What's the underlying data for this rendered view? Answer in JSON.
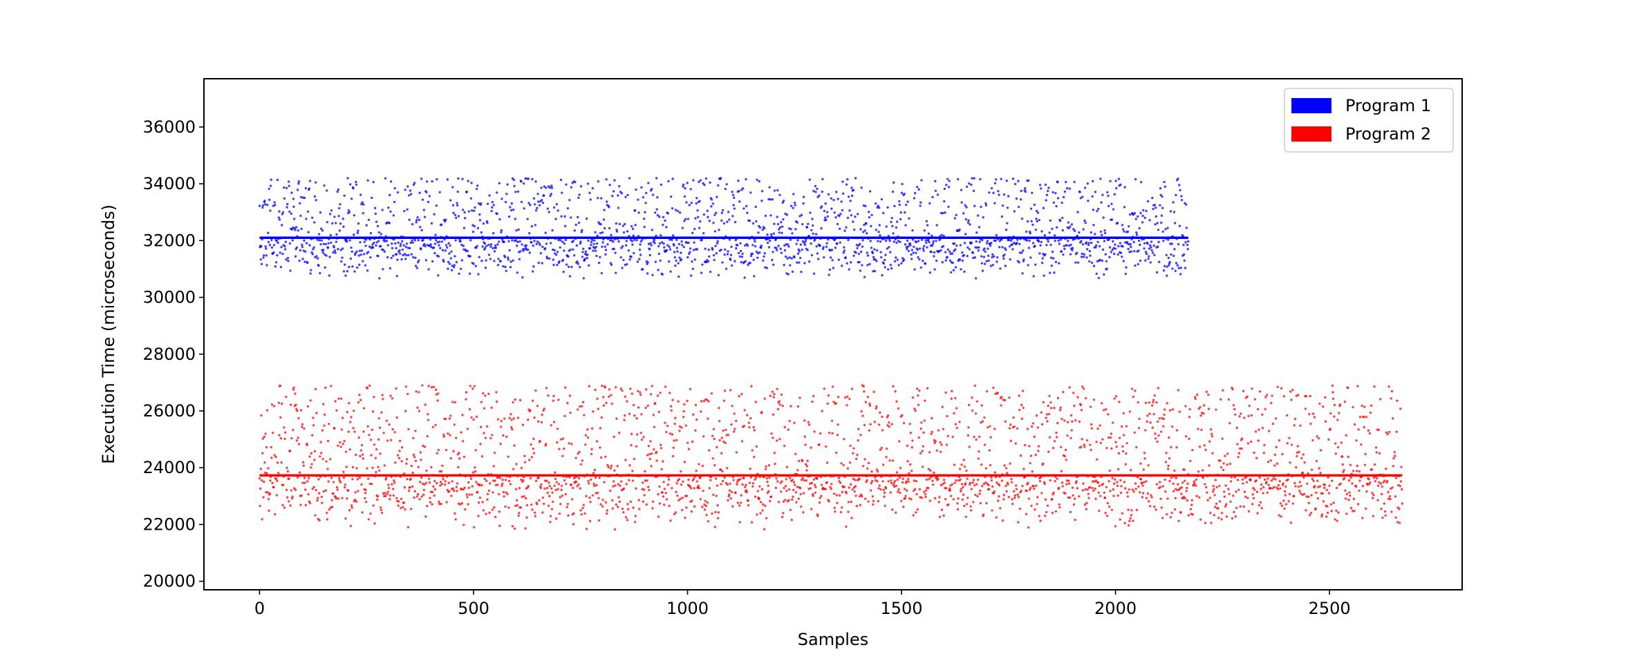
{
  "chart_data": {
    "type": "scatter",
    "title": "",
    "xlabel": "Samples",
    "ylabel": "Execution Time (microseconds)",
    "xlim": [
      -130,
      2810
    ],
    "ylim": [
      19700,
      37700
    ],
    "xticks": [
      0,
      500,
      1000,
      1500,
      2000,
      2500
    ],
    "yticks": [
      20000,
      22000,
      24000,
      26000,
      28000,
      30000,
      32000,
      34000,
      36000
    ],
    "grid": false,
    "legend": {
      "position": "top-right",
      "style": "color patch"
    },
    "series": [
      {
        "name": "Program 1",
        "color": "#0000ff",
        "n_points": 2170,
        "x_range": [
          0,
          2170
        ],
        "y_range": [
          30600,
          34200
        ],
        "mean": 32100
      },
      {
        "name": "Program 2",
        "color": "#ff0000",
        "n_points": 2670,
        "x_range": [
          0,
          2670
        ],
        "y_range": [
          21800,
          26900
        ],
        "mean": 23730
      }
    ]
  }
}
